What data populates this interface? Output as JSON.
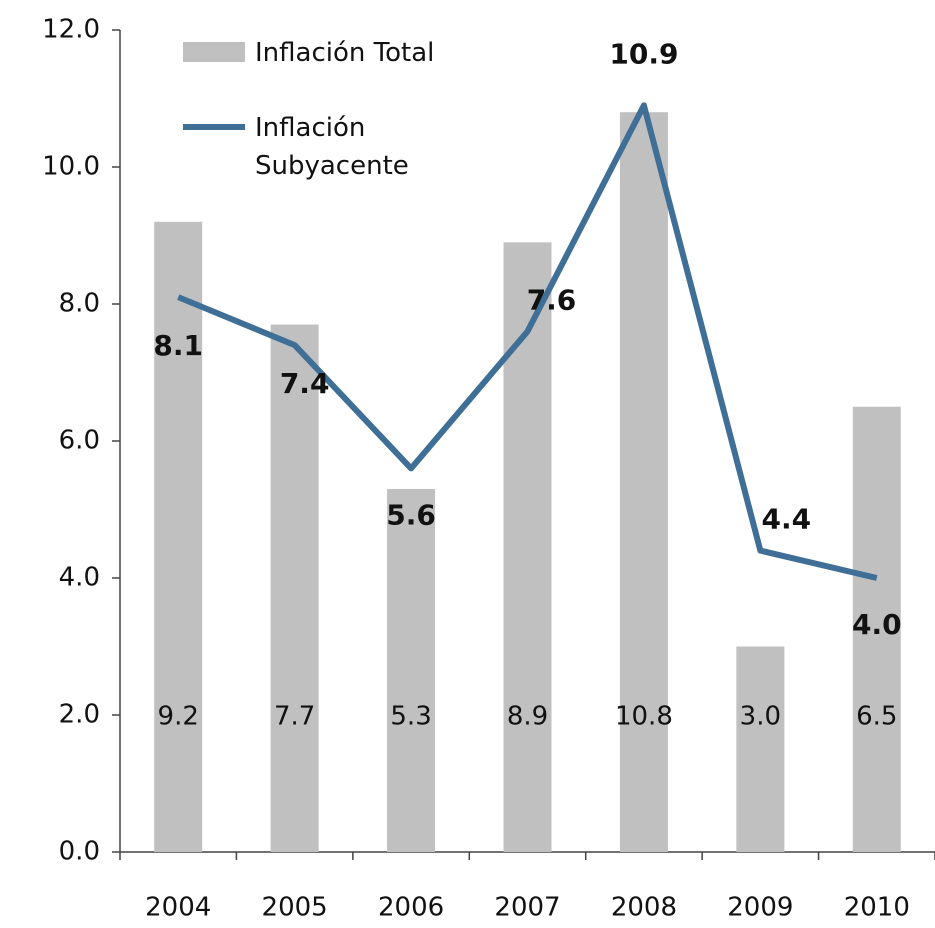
{
  "chart_data": {
    "type": "bar_line",
    "categories": [
      "2004",
      "2005",
      "2006",
      "2007",
      "2008",
      "2009",
      "2010"
    ],
    "series": [
      {
        "name": "Inflación Total",
        "type": "bar",
        "color": "#c0c0c0",
        "values": [
          9.2,
          7.7,
          5.3,
          8.9,
          10.8,
          3.0,
          6.5
        ],
        "value_labels": [
          "9.2",
          "7.7",
          "5.3",
          "8.9",
          "10.8",
          "3.0",
          "6.5"
        ]
      },
      {
        "name": "Inflación Subyacente",
        "type": "line",
        "color": "#3f6f96",
        "values": [
          8.1,
          7.4,
          5.6,
          7.6,
          10.9,
          4.4,
          4.0
        ],
        "value_labels": [
          "8.1",
          "7.4",
          "5.6",
          "7.6",
          "10.9",
          "4.4",
          "4.0"
        ]
      }
    ],
    "ylim": [
      0,
      12
    ],
    "yticks": [
      {
        "value": 0,
        "label": "0.0"
      },
      {
        "value": 2,
        "label": "2.0"
      },
      {
        "value": 4,
        "label": "4.0"
      },
      {
        "value": 6,
        "label": "6.0"
      },
      {
        "value": 8,
        "label": "8.0"
      },
      {
        "value": 10,
        "label": "10.0"
      },
      {
        "value": 12,
        "label": "12.0"
      }
    ]
  }
}
